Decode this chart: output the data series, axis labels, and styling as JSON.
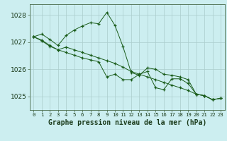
{
  "title": "Graphe pression niveau de la mer (hPa)",
  "bg_color": "#cceef0",
  "grid_color": "#aacccc",
  "line_color": "#1a5c1a",
  "marker_color": "#1a5c1a",
  "x_labels": [
    "0",
    "1",
    "2",
    "3",
    "4",
    "5",
    "6",
    "7",
    "8",
    "9",
    "10",
    "11",
    "12",
    "13",
    "14",
    "15",
    "16",
    "17",
    "18",
    "19",
    "20",
    "21",
    "22",
    "23"
  ],
  "ylim": [
    1024.5,
    1028.4
  ],
  "yticks": [
    1025,
    1026,
    1027,
    1028
  ],
  "lines": [
    [
      1027.2,
      1027.3,
      1027.1,
      1026.88,
      1027.25,
      1027.45,
      1027.6,
      1027.72,
      1027.68,
      1028.1,
      1027.62,
      1026.83,
      1025.88,
      1025.78,
      1026.05,
      1026.0,
      1025.82,
      1025.78,
      1025.72,
      1025.62,
      1025.08,
      1025.03,
      1024.88,
      1024.93
    ],
    [
      1027.2,
      1027.05,
      1026.85,
      1026.72,
      1026.82,
      1026.72,
      1026.62,
      1026.52,
      1026.42,
      1026.32,
      1026.22,
      1026.08,
      1025.92,
      1025.82,
      1025.72,
      1025.62,
      1025.52,
      1025.42,
      1025.32,
      1025.22,
      1025.08,
      1025.03,
      1024.88,
      1024.93
    ],
    [
      1027.2,
      1027.08,
      1026.88,
      1026.72,
      1026.62,
      1026.52,
      1026.42,
      1026.35,
      1026.28,
      1025.72,
      1025.82,
      1025.62,
      1025.62,
      1025.82,
      1025.92,
      1025.32,
      1025.25,
      1025.65,
      1025.65,
      1025.48,
      1025.08,
      1025.03,
      1024.88,
      1024.93
    ]
  ],
  "figsize": [
    3.2,
    2.0
  ],
  "dpi": 100,
  "bottom_label_color": "#1a3a1a",
  "title_fontsize": 7.0,
  "ytick_fontsize": 6.5,
  "xtick_fontsize": 5.2
}
